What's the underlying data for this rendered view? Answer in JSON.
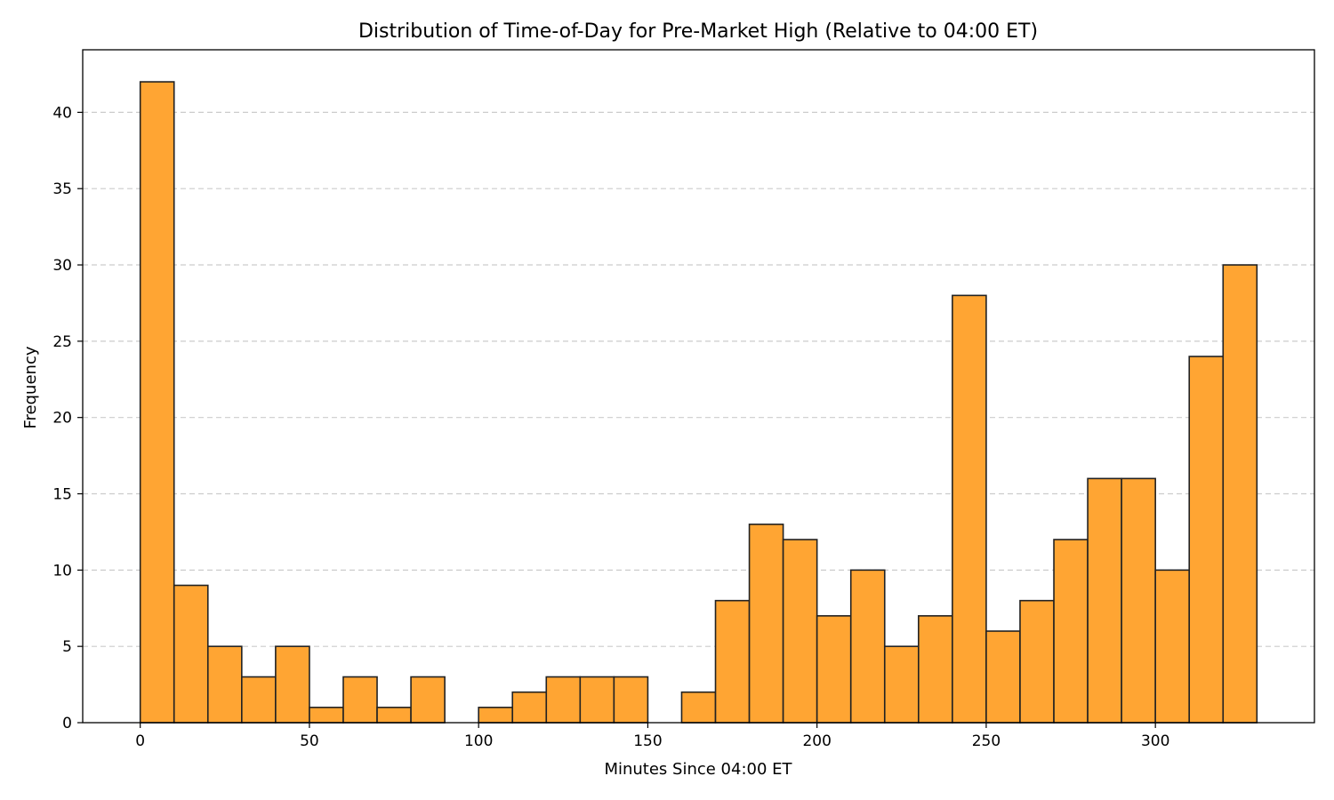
{
  "chart_data": {
    "type": "bar",
    "title": "Distribution of Time-of-Day for Pre-Market High (Relative to 04:00 ET)",
    "xlabel": "Minutes Since 04:00 ET",
    "ylabel": "Frequency",
    "xlim": [
      -17,
      347
    ],
    "ylim": [
      0,
      44.1
    ],
    "xticks": [
      0,
      50,
      100,
      150,
      200,
      250,
      300
    ],
    "yticks": [
      0,
      5,
      10,
      15,
      20,
      25,
      30,
      35,
      40
    ],
    "grid": "y-dashed",
    "bar_color": "#ffa533",
    "bins": [
      {
        "start": 0,
        "end": 10,
        "count": 42
      },
      {
        "start": 10,
        "end": 20,
        "count": 9
      },
      {
        "start": 20,
        "end": 30,
        "count": 5
      },
      {
        "start": 30,
        "end": 40,
        "count": 3
      },
      {
        "start": 40,
        "end": 50,
        "count": 5
      },
      {
        "start": 50,
        "end": 60,
        "count": 1
      },
      {
        "start": 60,
        "end": 70,
        "count": 3
      },
      {
        "start": 70,
        "end": 80,
        "count": 1
      },
      {
        "start": 80,
        "end": 90,
        "count": 3
      },
      {
        "start": 90,
        "end": 100,
        "count": 0
      },
      {
        "start": 100,
        "end": 110,
        "count": 1
      },
      {
        "start": 110,
        "end": 120,
        "count": 2
      },
      {
        "start": 120,
        "end": 130,
        "count": 3
      },
      {
        "start": 130,
        "end": 140,
        "count": 3
      },
      {
        "start": 140,
        "end": 150,
        "count": 3
      },
      {
        "start": 150,
        "end": 160,
        "count": 0
      },
      {
        "start": 160,
        "end": 170,
        "count": 2
      },
      {
        "start": 170,
        "end": 180,
        "count": 8
      },
      {
        "start": 180,
        "end": 190,
        "count": 13
      },
      {
        "start": 190,
        "end": 200,
        "count": 12
      },
      {
        "start": 200,
        "end": 210,
        "count": 7
      },
      {
        "start": 210,
        "end": 220,
        "count": 10
      },
      {
        "start": 220,
        "end": 230,
        "count": 5
      },
      {
        "start": 230,
        "end": 240,
        "count": 7
      },
      {
        "start": 240,
        "end": 250,
        "count": 28
      },
      {
        "start": 250,
        "end": 260,
        "count": 6
      },
      {
        "start": 260,
        "end": 270,
        "count": 8
      },
      {
        "start": 270,
        "end": 280,
        "count": 12
      },
      {
        "start": 280,
        "end": 290,
        "count": 16
      },
      {
        "start": 290,
        "end": 300,
        "count": 16
      },
      {
        "start": 300,
        "end": 310,
        "count": 10
      },
      {
        "start": 310,
        "end": 320,
        "count": 24
      },
      {
        "start": 320,
        "end": 330,
        "count": 30
      }
    ]
  }
}
